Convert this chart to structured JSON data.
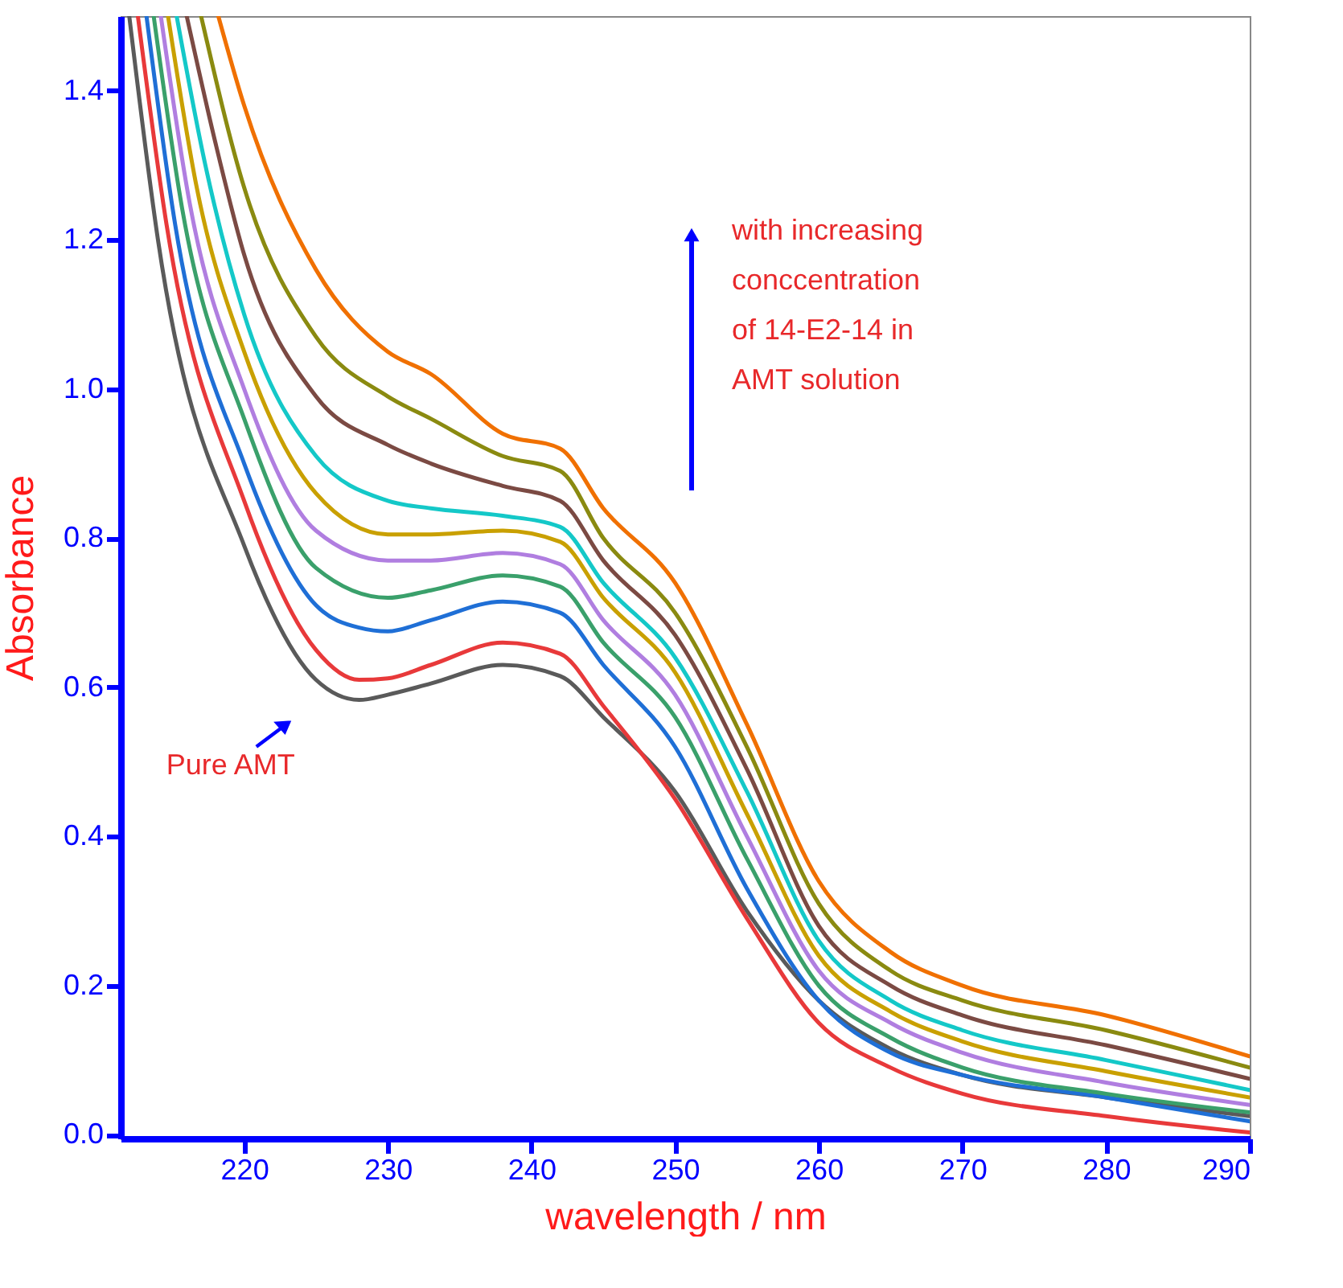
{
  "chart_data": {
    "type": "line",
    "xlabel": "wavelength / nm",
    "ylabel": "Absorbance",
    "xlim": [
      211.4,
      290
    ],
    "ylim": [
      -0.005,
      1.5
    ],
    "xticks": [
      220,
      230,
      240,
      250,
      260,
      270,
      280,
      290
    ],
    "yticks": [
      {
        "value": 0,
        "label": "0.0"
      },
      {
        "value": 0.2,
        "label": "0.2"
      },
      {
        "value": 0.4,
        "label": "0.4"
      },
      {
        "value": 0.6,
        "label": "0.6"
      },
      {
        "value": 0.8,
        "label": "0.8"
      },
      {
        "value": 1.0,
        "label": "1.0"
      },
      {
        "value": 1.2,
        "label": "1.2"
      },
      {
        "value": 1.4,
        "label": "1.4"
      }
    ],
    "grid": false,
    "legend": false,
    "line_style": "solid",
    "marker": "none",
    "annotations": [
      {
        "text": "Pure AMT",
        "x": 226,
        "y": 0.6
      },
      "with increasing\nconccentration\nof 14-E2-14 in\nAMT solution"
    ],
    "series": [
      {
        "color": "#5a5a5a",
        "x": [
          212,
          214,
          220,
          225,
          228,
          230,
          233,
          238,
          242,
          245,
          250,
          255,
          260,
          265,
          270,
          280,
          290
        ],
        "values": [
          1.5,
          1.2,
          0.79,
          0.61,
          0.583,
          0.59,
          0.605,
          0.63,
          0.615,
          0.56,
          0.46,
          0.3,
          0.18,
          0.115,
          0.08,
          0.05,
          0.025
        ]
      },
      {
        "color": "#e8393a",
        "x": [
          212.6,
          214.6,
          220,
          225,
          228,
          230,
          233,
          238,
          242,
          245,
          250,
          255,
          260,
          265,
          270,
          280,
          290
        ],
        "values": [
          1.5,
          1.22,
          0.85,
          0.65,
          0.61,
          0.612,
          0.63,
          0.66,
          0.645,
          0.575,
          0.45,
          0.29,
          0.15,
          0.09,
          0.055,
          0.025,
          0.003
        ]
      },
      {
        "color": "#1f6fd6",
        "x": [
          213.2,
          215.2,
          220,
          225,
          228,
          230,
          233,
          238,
          242,
          245,
          250,
          255,
          260,
          265,
          270,
          280,
          290
        ],
        "values": [
          1.5,
          1.22,
          0.9,
          0.71,
          0.68,
          0.675,
          0.69,
          0.715,
          0.7,
          0.63,
          0.52,
          0.33,
          0.18,
          0.11,
          0.08,
          0.05,
          0.018
        ]
      },
      {
        "color": "#3aa06b",
        "x": [
          213.7,
          215.7,
          220,
          225,
          230,
          233,
          238,
          242,
          245,
          250,
          255,
          260,
          265,
          270,
          280,
          290
        ],
        "values": [
          1.5,
          1.24,
          0.96,
          0.76,
          0.72,
          0.73,
          0.75,
          0.735,
          0.66,
          0.56,
          0.37,
          0.2,
          0.13,
          0.09,
          0.055,
          0.03
        ]
      },
      {
        "color": "#b07ee0",
        "x": [
          214.2,
          216.2,
          220,
          225,
          230,
          233,
          238,
          242,
          245,
          250,
          255,
          260,
          265,
          270,
          280,
          290
        ],
        "values": [
          1.5,
          1.25,
          1.0,
          0.81,
          0.77,
          0.77,
          0.78,
          0.765,
          0.69,
          0.59,
          0.4,
          0.22,
          0.15,
          0.11,
          0.07,
          0.04
        ]
      },
      {
        "color": "#c9a000",
        "x": [
          214.7,
          216.7,
          220,
          225,
          230,
          233,
          238,
          242,
          245,
          250,
          255,
          260,
          265,
          270,
          280,
          290
        ],
        "values": [
          1.5,
          1.27,
          1.05,
          0.86,
          0.805,
          0.805,
          0.81,
          0.795,
          0.72,
          0.62,
          0.43,
          0.24,
          0.165,
          0.125,
          0.085,
          0.05
        ]
      },
      {
        "color": "#14c8c8",
        "x": [
          215.3,
          217.3,
          220,
          225,
          230,
          233,
          238,
          242,
          245,
          250,
          255,
          260,
          265,
          270,
          280,
          290
        ],
        "values": [
          1.5,
          1.3,
          1.1,
          0.91,
          0.85,
          0.84,
          0.83,
          0.815,
          0.74,
          0.64,
          0.46,
          0.26,
          0.18,
          0.14,
          0.1,
          0.06
        ]
      },
      {
        "color": "#7b4a43",
        "x": [
          216,
          218,
          220,
          225,
          230,
          233,
          238,
          242,
          245,
          250,
          255,
          260,
          265,
          270,
          280,
          290
        ],
        "values": [
          1.5,
          1.33,
          1.18,
          0.99,
          0.925,
          0.9,
          0.87,
          0.85,
          0.77,
          0.67,
          0.49,
          0.28,
          0.2,
          0.16,
          0.12,
          0.075
        ]
      },
      {
        "color": "#8a8a10",
        "x": [
          217,
          220,
          225,
          230,
          233,
          238,
          242,
          245,
          250,
          255,
          260,
          265,
          270,
          280,
          290
        ],
        "values": [
          1.5,
          1.27,
          1.07,
          0.99,
          0.96,
          0.91,
          0.89,
          0.8,
          0.7,
          0.52,
          0.31,
          0.22,
          0.18,
          0.14,
          0.09
        ]
      },
      {
        "color": "#f07000",
        "x": [
          218.2,
          220,
          225,
          230,
          233,
          238,
          242,
          245,
          250,
          255,
          260,
          265,
          270,
          280,
          290
        ],
        "values": [
          1.5,
          1.38,
          1.16,
          1.05,
          1.02,
          0.94,
          0.92,
          0.84,
          0.74,
          0.55,
          0.34,
          0.245,
          0.2,
          0.16,
          0.105
        ]
      }
    ]
  }
}
